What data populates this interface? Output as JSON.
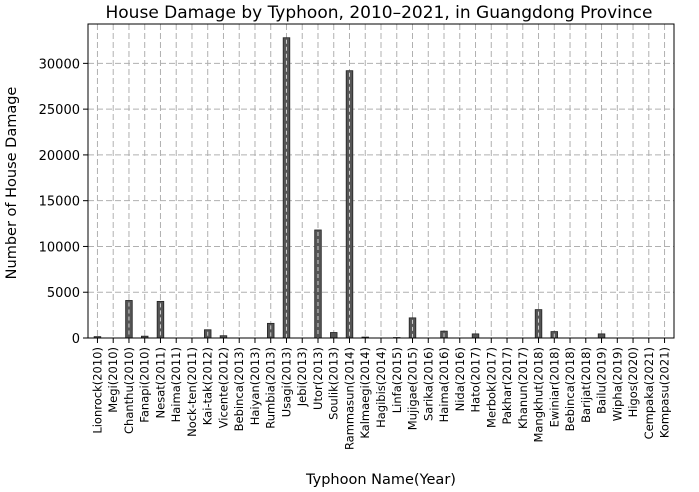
{
  "chart_data": {
    "type": "bar",
    "title": "House Damage by Typhoon, 2010–2021, in Guangdong Province",
    "xlabel": "Typhoon Name(Year)",
    "ylabel": "Number of House Damage",
    "ylim": [
      0,
      34300
    ],
    "yticks": [
      0,
      5000,
      10000,
      15000,
      20000,
      25000,
      30000
    ],
    "grid": true,
    "bar_color": "#555555",
    "categories": [
      "Lionrock(2010)",
      "Megi(2010)",
      "Chanthu(2010)",
      "Fanapi(2010)",
      "Nesat(2011)",
      "Haima(2011)",
      "Nock-ten(2011)",
      "Kai-tak(2012)",
      "Vicente(2012)",
      "Bebinca(2013)",
      "Haiyan(2013)",
      "Rumbia(2013)",
      "Usagi(2013)",
      "Jebi(2013)",
      "Utor(2013)",
      "Soulik(2013)",
      "Rammasun(2014)",
      "Kalmaegi(2014)",
      "Hagibis(2014)",
      "Linfa(2015)",
      "Mujigae(2015)",
      "Sarika(2016)",
      "Haima(2016)",
      "Nida(2016)",
      "Hato(2017)",
      "Merbok(2017)",
      "Pakhar(2017)",
      "Khanun(2017)",
      "Mangkhut(2018)",
      "Ewiniar(2018)",
      "Bebinca(2018)",
      "Barijat(2018)",
      "Bailu(2019)",
      "Wipha(2019)",
      "Higos(2020)",
      "Cempaka(2021)",
      "Kompasu(2021)"
    ],
    "values": [
      150,
      0,
      4100,
      200,
      4000,
      0,
      0,
      900,
      250,
      0,
      0,
      1600,
      32800,
      0,
      11800,
      600,
      29200,
      100,
      0,
      50,
      2200,
      0,
      750,
      0,
      450,
      0,
      0,
      0,
      3100,
      700,
      0,
      0,
      450,
      0,
      0,
      0,
      0
    ]
  }
}
